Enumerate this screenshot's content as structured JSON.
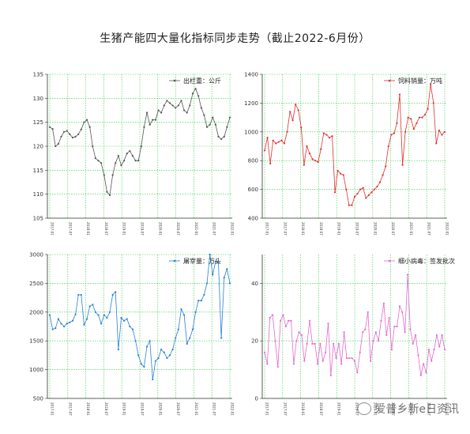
{
  "title": "生猪产能四大量化指标同步走势（截止2022-6月份）",
  "watermark": "爱普乡新e日资讯",
  "chart_data": [
    {
      "type": "line",
      "series": [
        {
          "name": "出栏重：公斤",
          "color": "#555555",
          "values": [
            124.0,
            123.6,
            120.0,
            120.5,
            122.0,
            123.0,
            123.2,
            122.5,
            121.8,
            122.0,
            122.5,
            123.5,
            125.0,
            125.5,
            124.0,
            120.0,
            117.5,
            117.0,
            116.5,
            114.0,
            110.5,
            109.8,
            114.0,
            116.5,
            118.0,
            116.0,
            117.0,
            118.5,
            119.0,
            118.0,
            117.0,
            117.0,
            120.0,
            124.0,
            127.0,
            124.5,
            125.5,
            125.5,
            127.5,
            127.0,
            128.5,
            129.5,
            129.0,
            128.5,
            128.0,
            128.5,
            129.5,
            127.5,
            127.0,
            128.5,
            131.0,
            132.0,
            130.5,
            128.0,
            126.5,
            124.0,
            124.5,
            126.0,
            124.5,
            122.0,
            121.5,
            122.0,
            124.0,
            126.0
          ]
        }
      ],
      "ylim": [
        105,
        135
      ],
      "yticks": [
        "105",
        "110",
        "115",
        "120",
        "125",
        "130",
        "135"
      ],
      "xticks": [
        "2017-01",
        "2017-07",
        "2018-01",
        "2018-07",
        "2019-01",
        "2019-07",
        "2020-01",
        "2020-07",
        "2021-01",
        "2021-07",
        "2022-01"
      ],
      "grid": true,
      "legend": "top-right"
    },
    {
      "type": "line",
      "series": [
        {
          "name": "饲料销量：万吨",
          "color": "#e03030",
          "values": [
            870,
            960,
            780,
            940,
            920,
            930,
            940,
            920,
            1000,
            1140,
            1080,
            1190,
            1150,
            1030,
            770,
            900,
            850,
            810,
            800,
            790,
            880,
            990,
            980,
            960,
            970,
            580,
            730,
            710,
            700,
            600,
            490,
            490,
            550,
            570,
            600,
            610,
            540,
            560,
            580,
            600,
            620,
            650,
            700,
            760,
            900,
            980,
            990,
            1060,
            1260,
            770,
            1000,
            1100,
            1090,
            1020,
            1060,
            1100,
            1100,
            1120,
            1160,
            1330,
            1200,
            920,
            1010,
            980,
            1000
          ]
        }
      ],
      "ylim": [
        400,
        1400
      ],
      "yticks": [
        "400",
        "600",
        "800",
        "1000",
        "1200",
        "1400"
      ],
      "xticks": [
        "2017-01",
        "2017-07",
        "2018-01",
        "2018-07",
        "2019-01",
        "2019-07",
        "2020-01",
        "2020-07",
        "2021-01",
        "2021-07",
        "2022-01"
      ],
      "grid": true,
      "legend": "top-right"
    },
    {
      "type": "line",
      "series": [
        {
          "name": "屠宰量：万头",
          "color": "#2b7fd6",
          "values": [
            1950,
            1700,
            1720,
            1880,
            1800,
            1750,
            1800,
            1820,
            1850,
            1960,
            2300,
            2300,
            1780,
            1880,
            2100,
            2130,
            2000,
            1950,
            1800,
            1950,
            1900,
            2000,
            2300,
            2350,
            1350,
            1900,
            1850,
            1880,
            1750,
            1700,
            1500,
            1250,
            1100,
            1050,
            1400,
            1500,
            830,
            1150,
            1200,
            1350,
            1300,
            1200,
            1250,
            1350,
            1550,
            1700,
            2050,
            1950,
            1450,
            1550,
            1700,
            2000,
            2200,
            2200,
            2300,
            2500,
            3000,
            2650,
            2880,
            2850,
            1550,
            2600,
            2750,
            2500
          ]
        }
      ],
      "ylim": [
        500,
        3000
      ],
      "yticks": [
        "500",
        "1000",
        "1500",
        "2000",
        "2500",
        "3000"
      ],
      "xticks": [
        "2017-01",
        "2017-07",
        "2018-01",
        "2018-07",
        "2019-01",
        "2019-07",
        "2020-01",
        "2020-07",
        "2021-01",
        "2021-07",
        "2022-01"
      ],
      "grid": true,
      "legend": "top-right"
    },
    {
      "type": "line",
      "series": [
        {
          "name": "细小病毒：签发批次",
          "color": "#e36ad0",
          "values": [
            16,
            12,
            28,
            29,
            20,
            11,
            27,
            29,
            25,
            27,
            27,
            12,
            20,
            23,
            22,
            13,
            19,
            27,
            19,
            19,
            12,
            19,
            13,
            16,
            26,
            8,
            19,
            14,
            19,
            12,
            23,
            14,
            14,
            14,
            13,
            9,
            16,
            23,
            24,
            30,
            13,
            20,
            23,
            20,
            27,
            33,
            22,
            28,
            17,
            25,
            25,
            32,
            30,
            23,
            43,
            24,
            19,
            22,
            15,
            8,
            12,
            9,
            17,
            13,
            17,
            22,
            18,
            22,
            17
          ]
        }
      ],
      "ylim": [
        0,
        50
      ],
      "yticks": [
        "0",
        "20",
        "40"
      ],
      "xticks": [
        "2017-01",
        "2017-07",
        "2018-01",
        "2018-07",
        "2019-01",
        "2019-07",
        "2020-01",
        "2020-07",
        "2021-01",
        "2021-07",
        "2022-01"
      ],
      "grid": true,
      "legend": "top-right"
    }
  ]
}
